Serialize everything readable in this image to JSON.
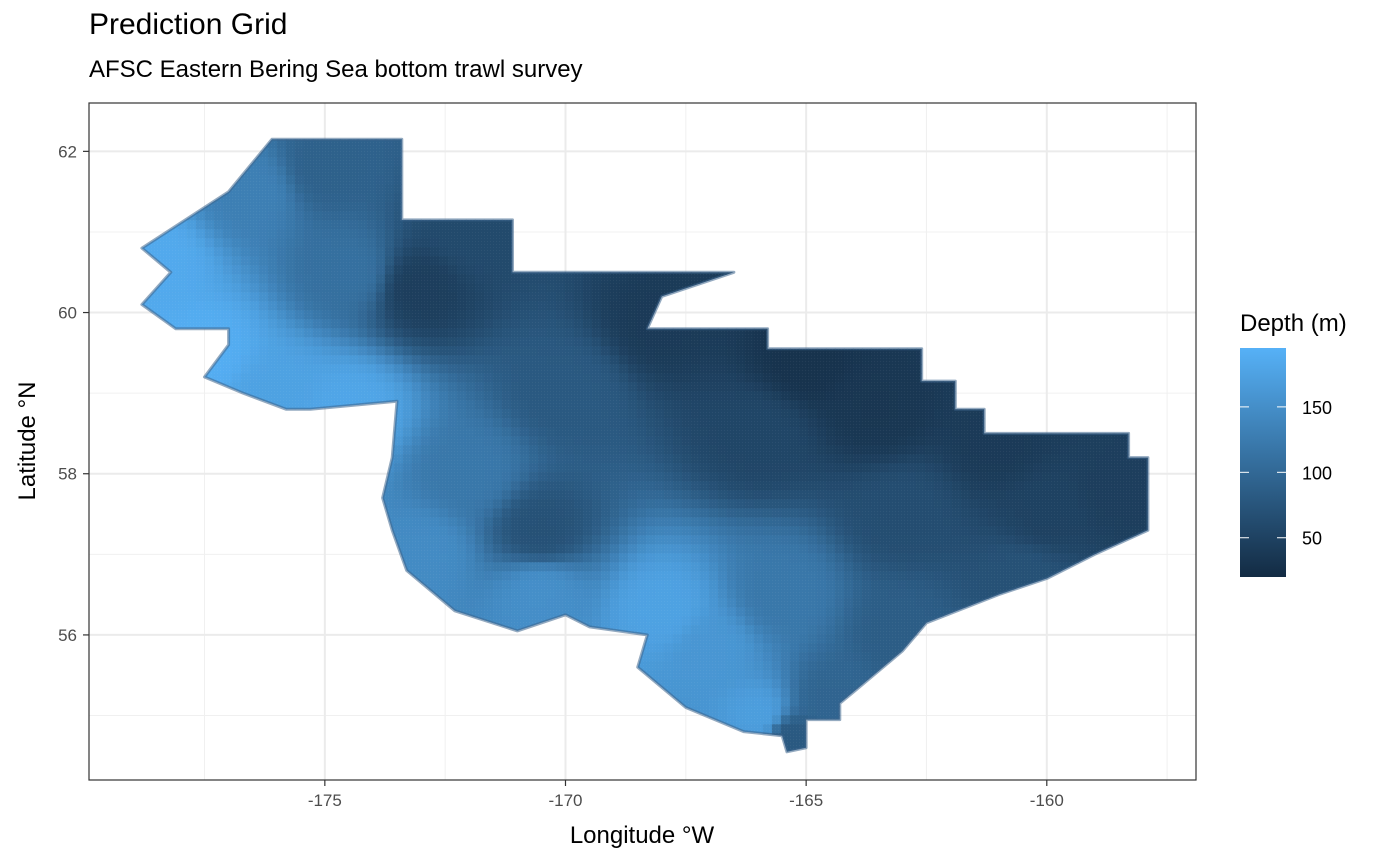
{
  "chart_data": {
    "type": "heatmap",
    "title": "Prediction Grid",
    "subtitle": "AFSC Eastern Bering Sea bottom trawl survey",
    "xlabel": "Longitude °W",
    "ylabel": "Latitude °N",
    "xlim": [
      -179.9,
      -156.9
    ],
    "ylim": [
      54.2,
      62.6
    ],
    "x_ticks": [
      -175,
      -170,
      -165,
      -160
    ],
    "x_tick_labels": [
      "-175",
      "-170",
      "-165",
      "-160"
    ],
    "y_ticks": [
      56,
      58,
      60,
      62
    ],
    "y_tick_labels": [
      "56",
      "58",
      "60",
      "62"
    ],
    "grid": true,
    "legend": {
      "title": "Depth (m)",
      "placement": "right",
      "ticks": [
        50,
        100,
        150
      ],
      "tick_labels": [
        "50",
        "100",
        "150"
      ],
      "range": [
        20,
        195
      ],
      "color_low": "#132B43",
      "color_high": "#56B1F7"
    },
    "outline": [
      [
        -176.1,
        62.15
      ],
      [
        -173.4,
        62.15
      ],
      [
        -173.4,
        61.15
      ],
      [
        -171.1,
        61.15
      ],
      [
        -171.1,
        60.5
      ],
      [
        -166.5,
        60.5
      ],
      [
        -168.0,
        60.2
      ],
      [
        -168.3,
        59.8
      ],
      [
        -165.8,
        59.8
      ],
      [
        -165.8,
        59.55
      ],
      [
        -162.6,
        59.55
      ],
      [
        -162.6,
        59.15
      ],
      [
        -161.9,
        59.15
      ],
      [
        -161.9,
        58.8
      ],
      [
        -161.3,
        58.8
      ],
      [
        -161.3,
        58.5
      ],
      [
        -158.3,
        58.5
      ],
      [
        -158.3,
        58.2
      ],
      [
        -157.9,
        58.2
      ],
      [
        -157.9,
        57.3
      ],
      [
        -159.0,
        57.0
      ],
      [
        -160.0,
        56.7
      ],
      [
        -161.0,
        56.5
      ],
      [
        -162.5,
        56.15
      ],
      [
        -163.0,
        55.8
      ],
      [
        -163.5,
        55.55
      ],
      [
        -164.0,
        55.3
      ],
      [
        -164.3,
        55.15
      ],
      [
        -164.3,
        54.95
      ],
      [
        -165.0,
        54.95
      ],
      [
        -165.0,
        54.6
      ],
      [
        -165.4,
        54.55
      ],
      [
        -165.5,
        54.75
      ],
      [
        -166.3,
        54.8
      ],
      [
        -167.5,
        55.1
      ],
      [
        -168.5,
        55.6
      ],
      [
        -168.3,
        56.0
      ],
      [
        -169.5,
        56.1
      ],
      [
        -170.0,
        56.25
      ],
      [
        -171.0,
        56.05
      ],
      [
        -172.3,
        56.3
      ],
      [
        -173.3,
        56.8
      ],
      [
        -173.6,
        57.3
      ],
      [
        -173.8,
        57.7
      ],
      [
        -173.6,
        58.2
      ],
      [
        -173.5,
        58.9
      ],
      [
        -175.3,
        58.8
      ],
      [
        -175.8,
        58.8
      ],
      [
        -176.7,
        59.0
      ],
      [
        -177.5,
        59.2
      ],
      [
        -177.0,
        59.6
      ],
      [
        -177.0,
        59.8
      ],
      [
        -177.5,
        59.8
      ],
      [
        -178.1,
        59.8
      ],
      [
        -178.8,
        60.1
      ],
      [
        -178.2,
        60.5
      ],
      [
        -178.8,
        60.8
      ],
      [
        -177.0,
        61.5
      ]
    ],
    "depth_samples": [
      {
        "lon": -178.5,
        "lat": 60.6,
        "depth": 185
      },
      {
        "lon": -177.5,
        "lat": 59.5,
        "depth": 190
      },
      {
        "lon": -176.0,
        "lat": 59.0,
        "depth": 175
      },
      {
        "lon": -174.5,
        "lat": 58.8,
        "depth": 180
      },
      {
        "lon": -176.5,
        "lat": 61.5,
        "depth": 130
      },
      {
        "lon": -175.0,
        "lat": 61.8,
        "depth": 90
      },
      {
        "lon": -174.5,
        "lat": 60.5,
        "depth": 110
      },
      {
        "lon": -173.0,
        "lat": 60.3,
        "depth": 45
      },
      {
        "lon": -172.0,
        "lat": 61.0,
        "depth": 60
      },
      {
        "lon": -173.0,
        "lat": 57.0,
        "depth": 145
      },
      {
        "lon": -172.0,
        "lat": 58.0,
        "depth": 120
      },
      {
        "lon": -170.5,
        "lat": 56.5,
        "depth": 150
      },
      {
        "lon": -170.5,
        "lat": 57.3,
        "depth": 70
      },
      {
        "lon": -170.0,
        "lat": 59.0,
        "depth": 80
      },
      {
        "lon": -168.0,
        "lat": 59.9,
        "depth": 40
      },
      {
        "lon": -167.0,
        "lat": 55.8,
        "depth": 160
      },
      {
        "lon": -168.0,
        "lat": 56.3,
        "depth": 175
      },
      {
        "lon": -166.0,
        "lat": 55.0,
        "depth": 170
      },
      {
        "lon": -165.5,
        "lat": 56.5,
        "depth": 120
      },
      {
        "lon": -166.0,
        "lat": 58.5,
        "depth": 55
      },
      {
        "lon": -165.0,
        "lat": 59.4,
        "depth": 30
      },
      {
        "lon": -163.5,
        "lat": 58.8,
        "depth": 35
      },
      {
        "lon": -163.0,
        "lat": 57.5,
        "depth": 65
      },
      {
        "lon": -163.0,
        "lat": 56.0,
        "depth": 85
      },
      {
        "lon": -164.5,
        "lat": 55.2,
        "depth": 95
      },
      {
        "lon": -165.3,
        "lat": 54.7,
        "depth": 80
      },
      {
        "lon": -161.0,
        "lat": 58.4,
        "depth": 40
      },
      {
        "lon": -160.0,
        "lat": 57.5,
        "depth": 50
      },
      {
        "lon": -160.5,
        "lat": 56.7,
        "depth": 70
      },
      {
        "lon": -158.5,
        "lat": 57.8,
        "depth": 45
      }
    ]
  }
}
